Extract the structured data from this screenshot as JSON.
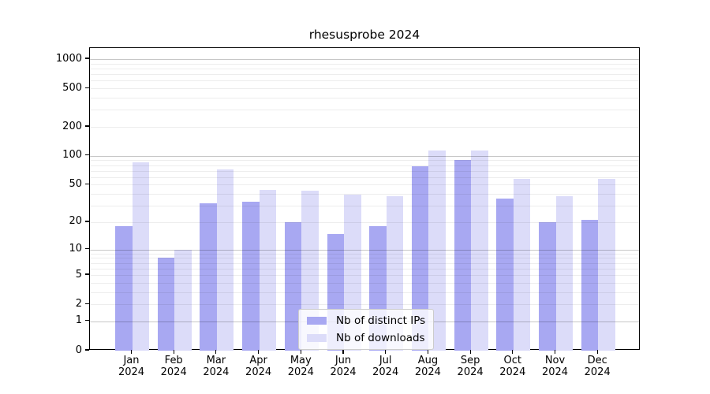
{
  "chart_data": {
    "type": "bar",
    "title": "rhesusprobe 2024",
    "categories": [
      {
        "month": "Jan",
        "year": "2024"
      },
      {
        "month": "Feb",
        "year": "2024"
      },
      {
        "month": "Mar",
        "year": "2024"
      },
      {
        "month": "Apr",
        "year": "2024"
      },
      {
        "month": "May",
        "year": "2024"
      },
      {
        "month": "Jun",
        "year": "2024"
      },
      {
        "month": "Jul",
        "year": "2024"
      },
      {
        "month": "Aug",
        "year": "2024"
      },
      {
        "month": "Sep",
        "year": "2024"
      },
      {
        "month": "Oct",
        "year": "2024"
      },
      {
        "month": "Nov",
        "year": "2024"
      },
      {
        "month": "Dec",
        "year": "2024"
      }
    ],
    "series": [
      {
        "name": "Nb of distinct IPs",
        "color": "#a8a8f2",
        "values": [
          18,
          8,
          32,
          33,
          20,
          15,
          18,
          78,
          90,
          36,
          20,
          21
        ]
      },
      {
        "name": "Nb of downloads",
        "color": "#dcdcf9",
        "values": [
          86,
          10,
          73,
          44,
          43,
          39,
          38,
          113,
          114,
          58,
          38,
          58
        ]
      }
    ],
    "y_axis": {
      "scale": "log10(value+1)",
      "ticks": [
        1000,
        500,
        200,
        100,
        50,
        20,
        10,
        5,
        2,
        1,
        0
      ],
      "range": [
        0,
        1250
      ]
    },
    "grid": {
      "major_lines": [
        1,
        10,
        100,
        1000
      ],
      "minor_lines": "2-9 per decade"
    },
    "legend": {
      "position": "lower center inside plot"
    }
  }
}
